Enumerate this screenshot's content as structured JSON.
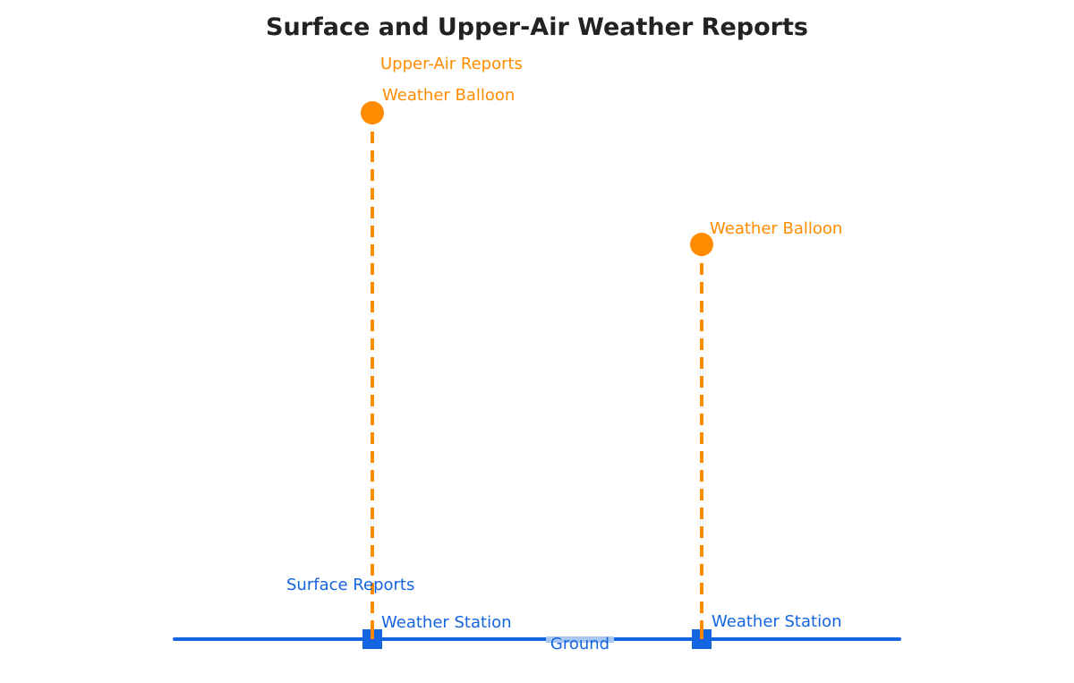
{
  "title": "Surface and Upper-Air Weather Reports",
  "colors": {
    "upper_air": "#FF8C00",
    "surface": "#1565E0",
    "title": "#222222",
    "ground_label_bg": "#A9C7F2"
  },
  "upper_air_label": "Upper-Air Reports",
  "surface_label": "Surface Reports",
  "ground_label": "Ground",
  "balloons": [
    {
      "label": "Weather Balloon",
      "icon": "balloon-circle-icon"
    },
    {
      "label": "Weather Balloon",
      "icon": "balloon-circle-icon"
    }
  ],
  "stations": [
    {
      "label": "Weather Station",
      "icon": "station-square-icon"
    },
    {
      "label": "Weather Station",
      "icon": "station-square-icon"
    }
  ]
}
